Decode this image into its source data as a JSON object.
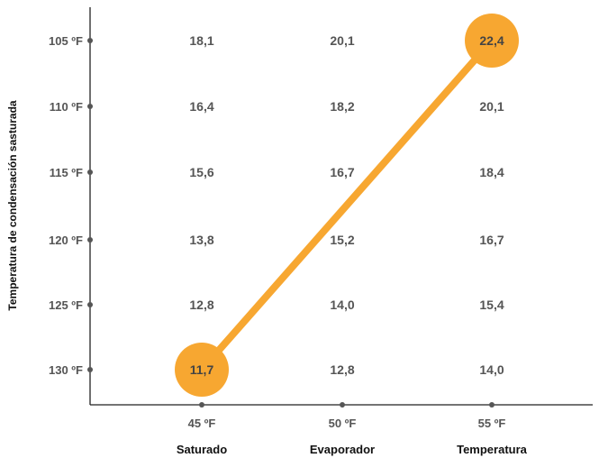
{
  "chart_data": {
    "type": "table",
    "ylabel": "Temperatura de condensación sasturada",
    "x_ticks": [
      "45 ºF",
      "50 ºF",
      "55 ºF"
    ],
    "x_group_labels": [
      "Saturado",
      "Evaporador",
      "Temperatura"
    ],
    "y_ticks": [
      "105 ºF",
      "110 ºF",
      "115 ºF",
      "120 ºF",
      "125 ºF",
      "130 ºF"
    ],
    "columns": [
      "45 ºF",
      "50 ºF",
      "55 ºF"
    ],
    "rows": [
      {
        "y": "105 ºF",
        "values": [
          "18,1",
          "20,1",
          "22,4"
        ]
      },
      {
        "y": "110 ºF",
        "values": [
          "16,4",
          "18,2",
          "20,1"
        ]
      },
      {
        "y": "115 ºF",
        "values": [
          "15,6",
          "16,7",
          "18,4"
        ]
      },
      {
        "y": "120 ºF",
        "values": [
          "13,8",
          "15,2",
          "16,7"
        ]
      },
      {
        "y": "125 ºF",
        "values": [
          "12,8",
          "14,0",
          "15,4"
        ]
      },
      {
        "y": "130 ºF",
        "values": [
          "11,7",
          "12,8",
          "14,0"
        ]
      }
    ],
    "highlight_line": {
      "color": "#F7A731",
      "from": {
        "x": "45 ºF",
        "y": "130 ºF",
        "value": "11,7"
      },
      "to": {
        "x": "55 ºF",
        "y": "105 ºF",
        "value": "22,4"
      }
    }
  }
}
